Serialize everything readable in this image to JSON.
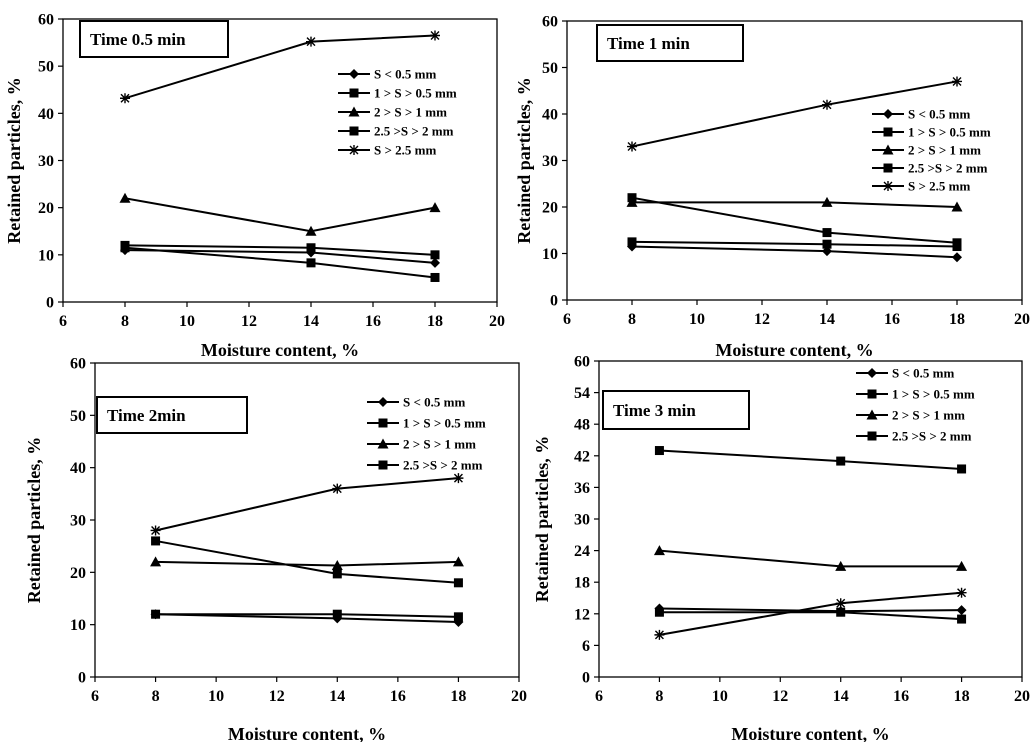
{
  "figure": {
    "panels": [
      {
        "title": "Time 0.5 min",
        "xlabel": "Moisture content, %",
        "ylabel": "Retained particles, %"
      },
      {
        "title": "Time 1 min",
        "xlabel": "Moisture content, %",
        "ylabel": "Retained particles, %"
      },
      {
        "title": "Time 2min",
        "xlabel": "Moisture content, %",
        "ylabel": "Retained particles, %"
      },
      {
        "title": "Time 3 min",
        "xlabel": "Moisture content, %",
        "ylabel": "Retained particles, %"
      }
    ]
  },
  "chart_data": [
    {
      "type": "line",
      "title": "Time 0.5 min",
      "xlabel": "Moisture content, %",
      "ylabel": "Retained particles, %",
      "x": [
        8,
        14,
        18
      ],
      "xlim": [
        6,
        20
      ],
      "xticks": [
        6,
        8,
        10,
        12,
        14,
        16,
        18,
        20
      ],
      "ylim": [
        0,
        60
      ],
      "yticks": [
        0,
        10,
        20,
        30,
        40,
        50,
        60
      ],
      "grid": false,
      "legend_position": "right",
      "series": [
        {
          "name": "S < 0.5 mm",
          "marker": "diamond",
          "values": [
            11,
            10.5,
            8.3
          ]
        },
        {
          "name": "1 > S > 0.5 mm",
          "marker": "square",
          "values": [
            12,
            11.5,
            10
          ]
        },
        {
          "name": "2 > S > 1 mm",
          "marker": "triangle",
          "values": [
            22,
            15,
            20
          ]
        },
        {
          "name": "2.5 >S > 2 mm",
          "marker": "square",
          "values": [
            11.5,
            8.3,
            5.2
          ]
        },
        {
          "name": "S > 2.5 mm",
          "marker": "star",
          "values": [
            43.2,
            55.2,
            56.5
          ]
        }
      ]
    },
    {
      "type": "line",
      "title": "Time 1 min",
      "xlabel": "Moisture content, %",
      "ylabel": "Retained particles, %",
      "x": [
        8,
        14,
        18
      ],
      "xlim": [
        6,
        20
      ],
      "xticks": [
        6,
        8,
        10,
        12,
        14,
        16,
        18,
        20
      ],
      "ylim": [
        0,
        60
      ],
      "yticks": [
        0,
        10,
        20,
        30,
        40,
        50,
        60
      ],
      "grid": false,
      "legend_position": "right",
      "series": [
        {
          "name": "S < 0.5 mm",
          "marker": "diamond",
          "values": [
            11.5,
            10.5,
            9.2
          ]
        },
        {
          "name": "1 > S > 0.5 mm",
          "marker": "square",
          "values": [
            12.5,
            12,
            11.5
          ]
        },
        {
          "name": "2 > S > 1 mm",
          "marker": "triangle",
          "values": [
            21,
            21,
            20
          ]
        },
        {
          "name": "2.5 >S > 2 mm",
          "marker": "square",
          "values": [
            22,
            14.5,
            12.3
          ]
        },
        {
          "name": "S > 2.5 mm",
          "marker": "star",
          "values": [
            33,
            42,
            47
          ]
        }
      ]
    },
    {
      "type": "line",
      "title": "Time 2min",
      "xlabel": "Moisture content, %",
      "ylabel": "Retained particles, %",
      "x": [
        8,
        14,
        18
      ],
      "xlim": [
        6,
        20
      ],
      "xticks": [
        6,
        8,
        10,
        12,
        14,
        16,
        18,
        20
      ],
      "ylim": [
        0,
        60
      ],
      "yticks": [
        0,
        10,
        20,
        30,
        40,
        50,
        60
      ],
      "grid": false,
      "legend_position": "top-right",
      "series": [
        {
          "name": "S < 0.5 mm",
          "marker": "diamond",
          "values": [
            12,
            11.2,
            10.5
          ]
        },
        {
          "name": "1 > S > 0.5 mm",
          "marker": "square",
          "values": [
            12,
            12,
            11.5
          ]
        },
        {
          "name": "2 > S > 1 mm",
          "marker": "triangle",
          "values": [
            22,
            21.3,
            22
          ]
        },
        {
          "name": "2.5 >S > 2 mm",
          "marker": "square",
          "values": [
            26,
            19.7,
            18
          ]
        },
        {
          "name": "",
          "marker": "star",
          "values": [
            28,
            36,
            38
          ]
        }
      ]
    },
    {
      "type": "line",
      "title": "Time 3 min",
      "xlabel": "Moisture content, %",
      "ylabel": "Retained particles, %",
      "x": [
        8,
        14,
        18
      ],
      "xlim": [
        6,
        20
      ],
      "xticks": [
        6,
        8,
        10,
        12,
        14,
        16,
        18,
        20
      ],
      "ylim": [
        0,
        60
      ],
      "yticks": [
        0,
        6,
        12,
        18,
        24,
        30,
        36,
        42,
        48,
        54,
        60
      ],
      "grid": false,
      "legend_position": "top-right",
      "series": [
        {
          "name": "S < 0.5 mm",
          "marker": "diamond",
          "values": [
            13,
            12.5,
            12.7
          ]
        },
        {
          "name": "1 > S > 0.5 mm",
          "marker": "square",
          "values": [
            12.3,
            12.3,
            11
          ]
        },
        {
          "name": "2 > S > 1 mm",
          "marker": "triangle",
          "values": [
            24,
            21,
            21
          ]
        },
        {
          "name": "2.5 >S > 2 mm",
          "marker": "square",
          "values": [
            43,
            41,
            39.5
          ]
        },
        {
          "name": "",
          "marker": "star",
          "values": [
            8,
            14,
            16
          ]
        }
      ]
    }
  ]
}
